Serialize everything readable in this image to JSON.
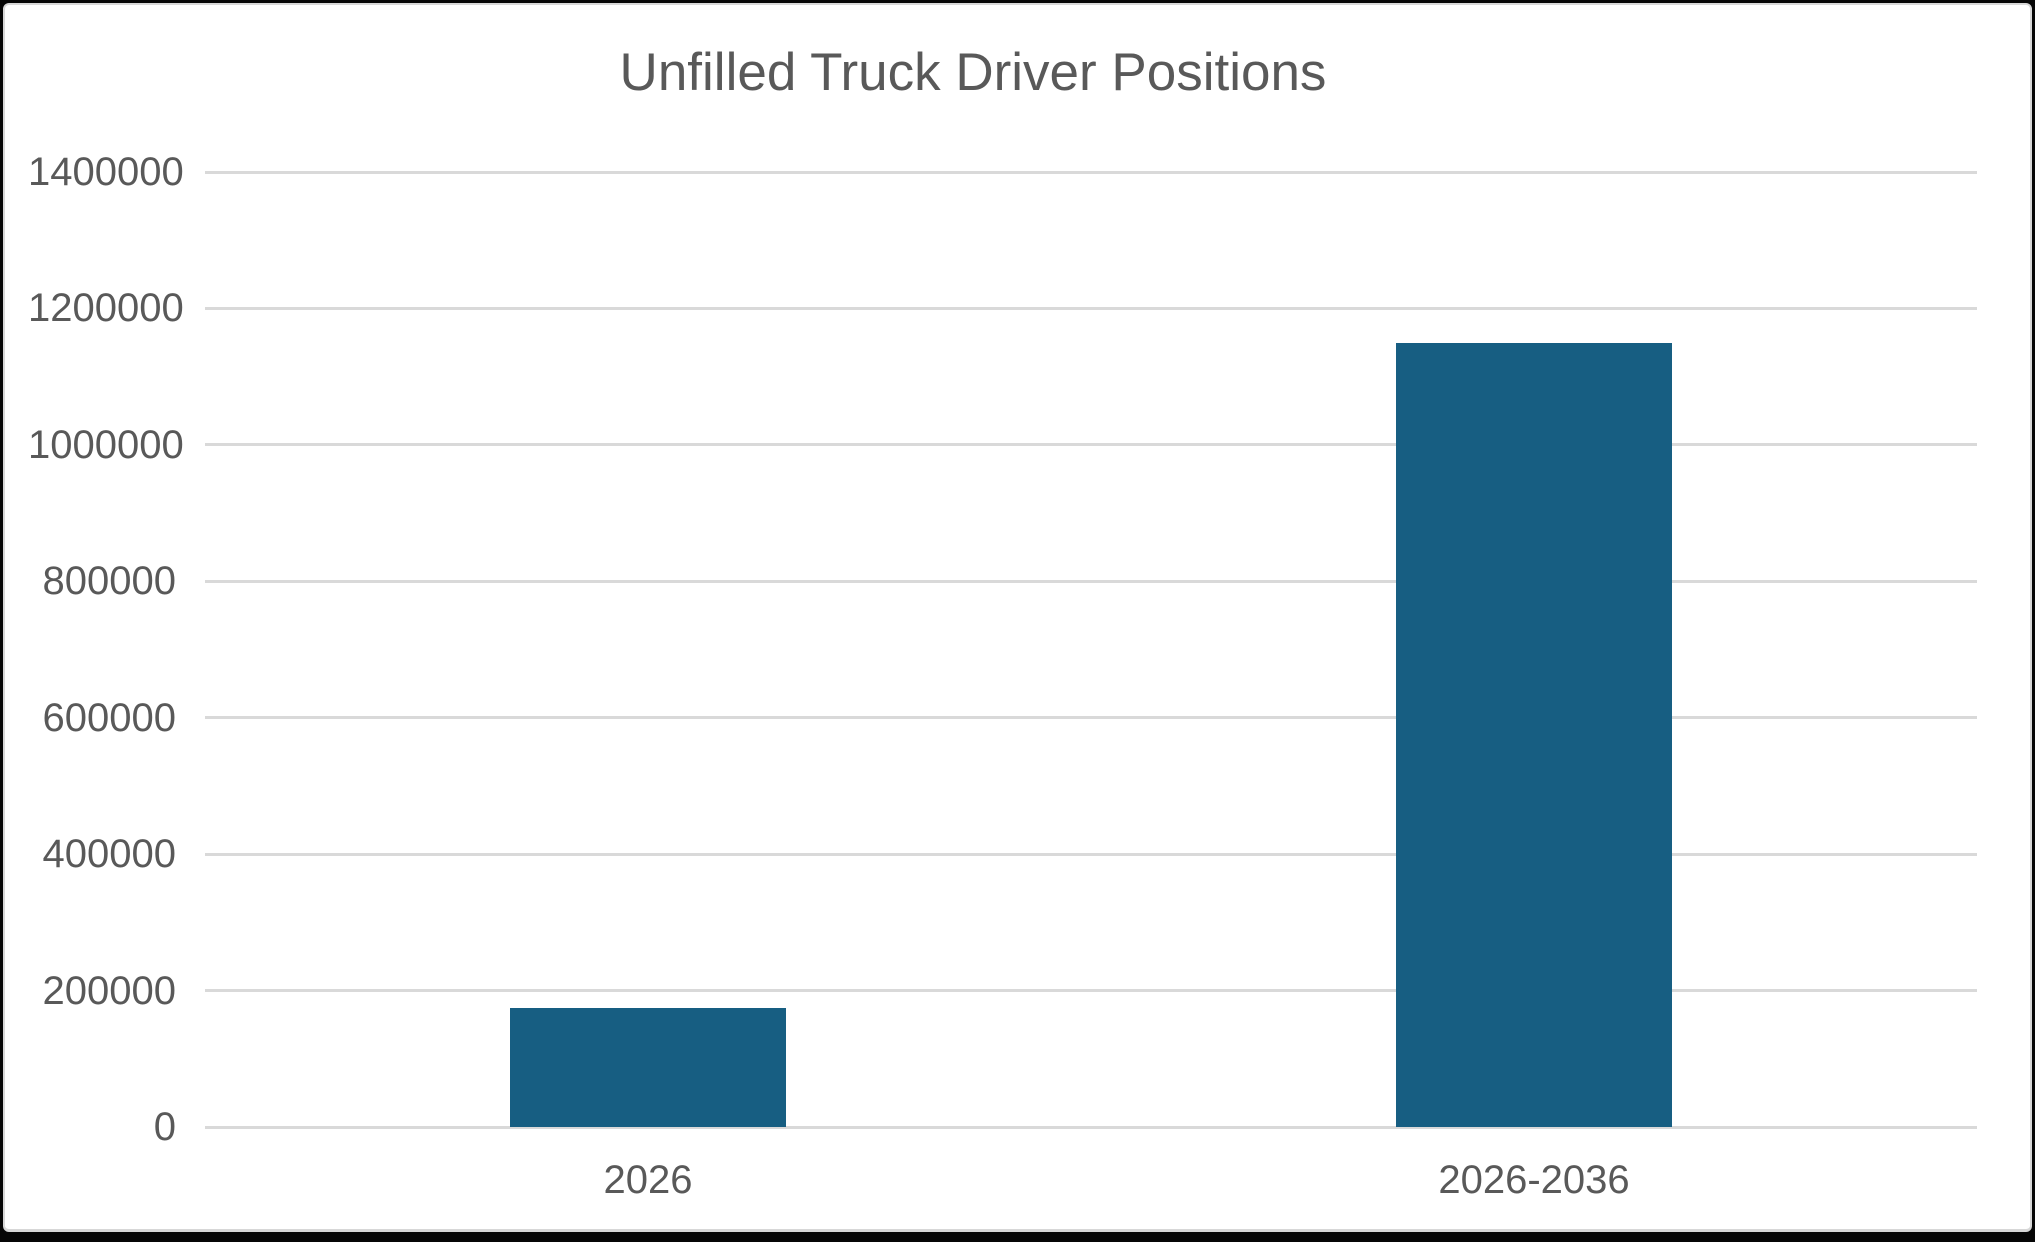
{
  "frame": {
    "outer_border_color": "#060606",
    "panel_background": "#ffffff",
    "panel_edge_color": "#d7d7d7"
  },
  "chart_data": {
    "type": "bar",
    "title": "Unfilled Truck Driver Positions",
    "categories": [
      "2026",
      "2026-2036"
    ],
    "values": [
      174000,
      1150000
    ],
    "xlabel": "",
    "ylabel": "",
    "ylim": [
      0,
      1400000
    ],
    "ytick_step": 200000,
    "ytick_labels": [
      "0",
      "200000",
      "400000",
      "600000",
      "800000",
      "1000000",
      "1200000",
      "1400000"
    ],
    "grid": "horizontal-only",
    "legend": "none",
    "colors": {
      "bar": "#175e82",
      "gridline": "#d9d9d9",
      "text": "#595959",
      "title": "#595959"
    }
  }
}
